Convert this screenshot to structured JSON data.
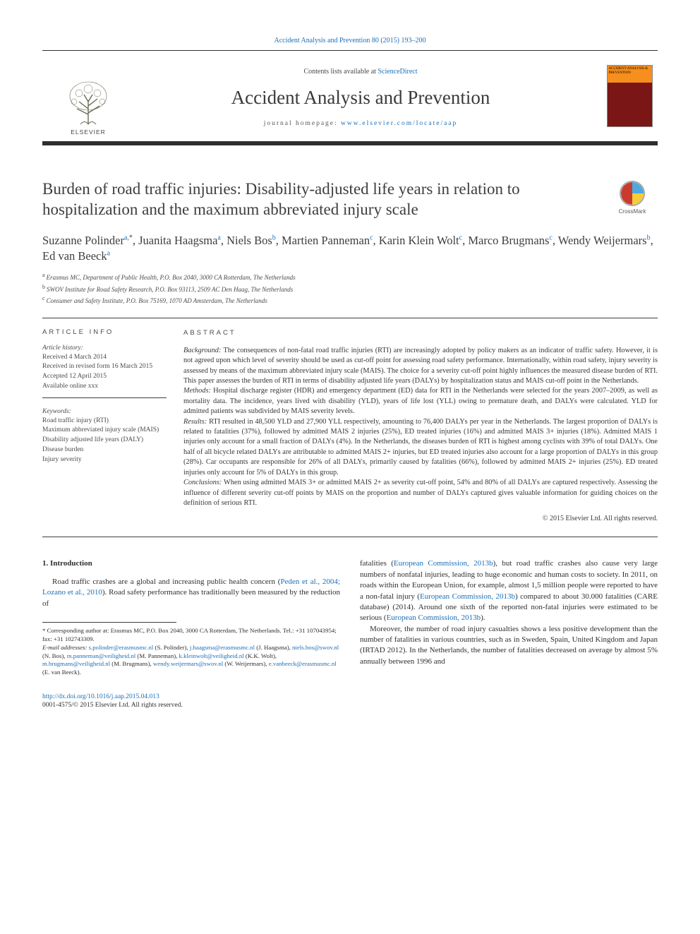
{
  "journal": {
    "citation_line": "Accident Analysis and Prevention 80 (2015) 193–200",
    "contents_prefix": "Contents lists available at ",
    "contents_link": "ScienceDirect",
    "title": "Accident Analysis and Prevention",
    "homepage_prefix": "journal homepage: ",
    "homepage_url": "www.elsevier.com/locate/aap",
    "publisher_name": "ELSEVIER",
    "cover_text": "ACCIDENT ANALYSIS & PREVENTION"
  },
  "crossmark": {
    "label": "CrossMark"
  },
  "article": {
    "title": "Burden of road traffic injuries: Disability-adjusted life years in relation to hospitalization and the maximum abbreviated injury scale",
    "authors_html": "Suzanne Polinder<sup>a,</sup><sup class='star'>*</sup>, Juanita Haagsma<sup>a</sup>, Niels Bos<sup>b</sup>, Martien Panneman<sup>c</sup>, Karin Klein Wolt<sup>c</sup>, Marco Brugmans<sup>c</sup>, Wendy Weijermars<sup>b</sup>, Ed van Beeck<sup>a</sup>",
    "affiliations": [
      {
        "sup": "a",
        "text": "Erasmus MC, Department of Public Health, P.O. Box 2040, 3000 CA Rotterdam, The Netherlands"
      },
      {
        "sup": "b",
        "text": "SWOV Institute for Road Safety Research, P.O. Box 93113, 2509 AC Den Haag, The Netherlands"
      },
      {
        "sup": "c",
        "text": "Consumer and Safety Institute, P.O. Box 75169, 1070 AD Amsterdam, The Netherlands"
      }
    ]
  },
  "meta": {
    "info_head": "ARTICLE INFO",
    "history_head": "Article history:",
    "history": [
      "Received 4 March 2014",
      "Received in revised form 16 March 2015",
      "Accepted 12 April 2015",
      "Available online xxx"
    ],
    "keywords_head": "Keywords:",
    "keywords": [
      "Road traffic injury (RTI)",
      "Maximum abbreviated injury scale (MAIS)",
      "Disability adjusted life years (DALY)",
      "Disease burden",
      "Injury severity"
    ]
  },
  "abstract": {
    "head": "ABSTRACT",
    "background_label": "Background:",
    "background": " The consequences of non-fatal road traffic injuries (RTI) are increasingly adopted by policy makers as an indicator of traffic safety. However, it is not agreed upon which level of severity should be used as cut-off point for assessing road safety performance. Internationally, within road safety, injury severity is assessed by means of the maximum abbreviated injury scale (MAIS). The choice for a severity cut-off point highly influences the measured disease burden of RTI. This paper assesses the burden of RTI in terms of disability adjusted life years (DALYs) by hospitalization status and MAIS cut-off point in the Netherlands.",
    "methods_label": "Methods:",
    "methods": " Hospital discharge register (HDR) and emergency department (ED) data for RTI in the Netherlands were selected for the years 2007–2009, as well as mortality data. The incidence, years lived with disability (YLD), years of life lost (YLL) owing to premature death, and DALYs were calculated. YLD for admitted patients was subdivided by MAIS severity levels.",
    "results_label": "Results:",
    "results": " RTI resulted in 48,500 YLD and 27,900 YLL respectively, amounting to 76,400 DALYs per year in the Netherlands. The largest proportion of DALYs is related to fatalities (37%), followed by admitted MAIS 2 injuries (25%), ED treated injuries (16%) and admitted MAIS 3+ injuries (18%). Admitted MAIS 1 injuries only account for a small fraction of DALYs (4%). In the Netherlands, the diseases burden of RTI is highest among cyclists with 39% of total DALYs. One half of all bicycle related DALYs are attributable to admitted MAIS 2+ injuries, but ED treated injuries also account for a large proportion of DALYs in this group (28%). Car occupants are responsible for 26% of all DALYs, primarily caused by fatalities (66%), followed by admitted MAIS 2+ injuries (25%). ED treated injuries only account for 5% of DALYs in this group.",
    "conclusions_label": "Conclusions:",
    "conclusions": " When using admitted MAIS 3+ or admitted MAIS 2+ as severity cut-off point, 54% and 80% of all DALYs are captured respectively. Assessing the influence of different severity cut-off points by MAIS on the proportion and number of DALYs captured gives valuable information for guiding choices on the definition of serious RTI.",
    "copyright": "© 2015 Elsevier Ltd. All rights reserved."
  },
  "body": {
    "section_head": "1. Introduction",
    "col1_p1_pre": "Road traffic crashes are a global and increasing public health concern (",
    "col1_p1_cite": "Peden et al., 2004; Lozano et al., 2010",
    "col1_p1_post": "). Road safety performance has traditionally been measured by the reduction of",
    "col2_p1_a": "fatalities (",
    "col2_p1_cite1": "European Commission, 2013b",
    "col2_p1_b": "), but road traffic crashes also cause very large numbers of nonfatal injuries, leading to huge economic and human costs to society. In 2011, on roads within the European Union, for example, almost 1,5 million people were reported to have a non-fatal injury (",
    "col2_p1_cite2": "European Commission, 2013b",
    "col2_p1_c": ") compared to about 30.000 fatalities (CARE database) (2014). Around one sixth of the reported non-fatal injuries were estimated to be serious (",
    "col2_p1_cite3": "European Commission, 2013b",
    "col2_p1_d": ").",
    "col2_p2": "Moreover, the number of road injury casualties shows a less positive development than the number of fatalities in various countries, such as in Sweden, Spain, United Kingdom and Japan (IRTAD 2012). In the Netherlands, the number of fatalities decreased on average by almost 5% annually between 1996 and"
  },
  "footnotes": {
    "corr": "* Corresponding author at: Erasmus MC, P.O. Box 2040, 3000 CA Rotterdam, The Netherlands. Tel.: +31 107043954; fax: +31 102743309.",
    "email_label": "E-mail addresses:",
    "emails_html": " <a>s.polinder@erasmusmc.nl</a> (S. Polinder), <a>j.haagsma@erasmusmc.nl</a> (J. Haagsma), <a>niels.bos@swov.nl</a> (N. Bos), <a>m.panneman@veiligheid.nl</a> (M. Panneman), <a>k.kleinwolt@veiligheid.nl</a> (K.K. Wolt), <a>m.brugmans@veiligheid.nl</a> (M. Brugmans), <a>wendy.weijermars@swov.nl</a> (W. Weijermars), <a>e.vanbeeck@erasmusmc.nl</a> (E. van Beeck)."
  },
  "footer": {
    "doi": "http://dx.doi.org/10.1016/j.aap.2015.04.013",
    "issn_line": "0001-4575/© 2015 Elsevier Ltd. All rights reserved."
  },
  "colors": {
    "link": "#1a6eb8",
    "text": "#2e2e2e",
    "rule": "#3e3e3e",
    "cover_top": "#f78f1e",
    "cover_bottom": "#7a1616"
  }
}
